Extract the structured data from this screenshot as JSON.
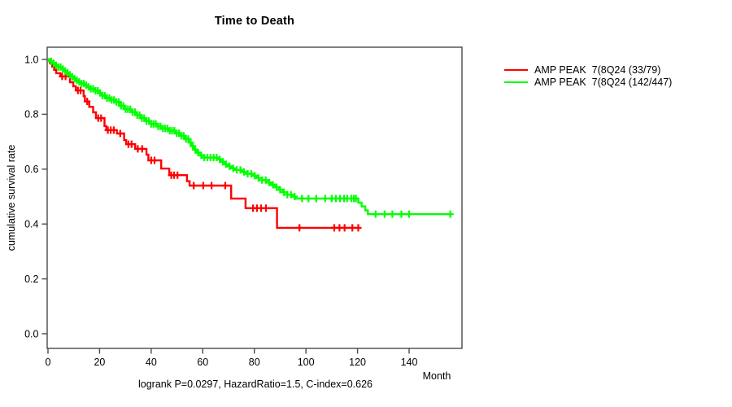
{
  "title": "Time to Death",
  "footer": "logrank P=0.0297, HazardRatio=1.5, C-index=0.626",
  "legend": [
    {
      "label": "AMP PEAK  7(8Q24 (33/79)",
      "color": "#ff0000"
    },
    {
      "label": "AMP PEAK  7(8Q24 (142/447)",
      "color": "#00ff00"
    }
  ],
  "chart_data": {
    "type": "line",
    "subtype": "kaplan-meier-step",
    "title": "Time to Death",
    "xlabel": "Month",
    "ylabel": "cumulative survival rate",
    "annotation": "logrank P=0.0297, HazardRatio=1.5, C-index=0.626",
    "xlim": [
      0,
      160
    ],
    "ylim": [
      0,
      1.0
    ],
    "grid": false,
    "legend_position": "right-outside",
    "xticks": [
      {
        "value": 0,
        "label": "0"
      },
      {
        "value": 20,
        "label": "20"
      },
      {
        "value": 40,
        "label": "40"
      },
      {
        "value": 60,
        "label": "60"
      },
      {
        "value": 80,
        "label": "80"
      },
      {
        "value": 100,
        "label": "100"
      },
      {
        "value": 120,
        "label": "120"
      },
      {
        "value": 140,
        "label": "140"
      }
    ],
    "yticks": [
      {
        "value": 0.0,
        "label": "0.0"
      },
      {
        "value": 0.2,
        "label": "0.2"
      },
      {
        "value": 0.4,
        "label": "0.4"
      },
      {
        "value": 0.6,
        "label": "0.6"
      },
      {
        "value": 0.8,
        "label": "0.8"
      },
      {
        "value": 1.0,
        "label": "1.0"
      }
    ],
    "series": [
      {
        "name": "AMP PEAK  7(8Q24 (33/79)",
        "color": "#ff0000",
        "end_month": 120.5,
        "points": [
          [
            0,
            1.0
          ],
          [
            0.8,
            0.987
          ],
          [
            1.6,
            0.974
          ],
          [
            2.4,
            0.962
          ],
          [
            3.2,
            0.95
          ],
          [
            4.8,
            0.938
          ],
          [
            8.5,
            0.917
          ],
          [
            9.8,
            0.902
          ],
          [
            10.8,
            0.887
          ],
          [
            13.8,
            0.866
          ],
          [
            14.3,
            0.847
          ],
          [
            16.0,
            0.827
          ],
          [
            17.5,
            0.807
          ],
          [
            18.6,
            0.786
          ],
          [
            21.9,
            0.757
          ],
          [
            22.6,
            0.742
          ],
          [
            26.7,
            0.73
          ],
          [
            29.5,
            0.706
          ],
          [
            30.3,
            0.691
          ],
          [
            33.8,
            0.674
          ],
          [
            38.2,
            0.653
          ],
          [
            38.9,
            0.632
          ],
          [
            43.9,
            0.602
          ],
          [
            47.0,
            0.578
          ],
          [
            53.9,
            0.556
          ],
          [
            54.9,
            0.54
          ],
          [
            71.0,
            0.493
          ],
          [
            76.6,
            0.458
          ],
          [
            88.8,
            0.386
          ]
        ],
        "censor_months": [
          5.5,
          6.8,
          11.6,
          12.6,
          15.2,
          19.5,
          20.6,
          23.2,
          24.3,
          25.5,
          28.0,
          31.2,
          32.4,
          34.8,
          36.5,
          40.0,
          41.3,
          47.8,
          48.9,
          50.2,
          56.5,
          60.2,
          63.4,
          68.7,
          79.5,
          81.0,
          82.6,
          84.5,
          97.5,
          111.0,
          113.0,
          115.0,
          118.0,
          120.3
        ]
      },
      {
        "name": "AMP PEAK  7(8Q24 (142/447)",
        "color": "#00ff00",
        "end_month": 156.5,
        "points": [
          [
            0,
            1.0
          ],
          [
            1,
            0.993
          ],
          [
            2,
            0.986
          ],
          [
            3,
            0.979
          ],
          [
            4,
            0.972
          ],
          [
            5,
            0.965
          ],
          [
            6,
            0.958
          ],
          [
            7,
            0.951
          ],
          [
            8,
            0.944
          ],
          [
            9,
            0.937
          ],
          [
            10,
            0.93
          ],
          [
            11,
            0.924
          ],
          [
            12,
            0.918
          ],
          [
            13,
            0.912
          ],
          [
            14,
            0.906
          ],
          [
            15,
            0.9
          ],
          [
            16.5,
            0.893
          ],
          [
            18,
            0.886
          ],
          [
            19.5,
            0.878
          ],
          [
            21,
            0.868
          ],
          [
            22.5,
            0.859
          ],
          [
            24,
            0.852
          ],
          [
            26,
            0.845
          ],
          [
            28,
            0.831
          ],
          [
            30,
            0.818
          ],
          [
            32,
            0.808
          ],
          [
            34,
            0.797
          ],
          [
            36,
            0.786
          ],
          [
            38,
            0.775
          ],
          [
            40,
            0.765
          ],
          [
            42,
            0.756
          ],
          [
            44.5,
            0.748
          ],
          [
            47,
            0.74
          ],
          [
            49.5,
            0.731
          ],
          [
            51.5,
            0.722
          ],
          [
            53,
            0.71
          ],
          [
            54.5,
            0.697
          ],
          [
            55.5,
            0.684
          ],
          [
            56.5,
            0.671
          ],
          [
            57.8,
            0.66
          ],
          [
            59.2,
            0.65
          ],
          [
            60.5,
            0.642
          ],
          [
            66,
            0.636
          ],
          [
            67,
            0.627
          ],
          [
            68.2,
            0.618
          ],
          [
            69.6,
            0.61
          ],
          [
            71,
            0.603
          ],
          [
            73,
            0.597
          ],
          [
            75,
            0.59
          ],
          [
            77,
            0.583
          ],
          [
            79,
            0.576
          ],
          [
            81,
            0.568
          ],
          [
            83,
            0.56
          ],
          [
            84.8,
            0.551
          ],
          [
            86.4,
            0.543
          ],
          [
            88,
            0.534
          ],
          [
            89.6,
            0.525
          ],
          [
            91.2,
            0.516
          ],
          [
            92.8,
            0.507
          ],
          [
            94.4,
            0.5
          ],
          [
            95.8,
            0.493
          ],
          [
            120.3,
            0.478
          ],
          [
            121.6,
            0.464
          ],
          [
            123.0,
            0.45
          ],
          [
            124.0,
            0.436
          ]
        ],
        "censor_months": [
          1.2,
          2.2,
          3.1,
          4.0,
          4.9,
          5.8,
          6.7,
          7.6,
          8.5,
          9.4,
          10.3,
          11.2,
          12.1,
          13.0,
          13.9,
          14.8,
          15.7,
          16.6,
          17.5,
          18.4,
          19.3,
          20.2,
          21.1,
          22.0,
          22.9,
          23.8,
          24.7,
          25.6,
          26.5,
          27.4,
          28.3,
          29.2,
          30.1,
          31.0,
          31.9,
          32.8,
          33.7,
          34.6,
          35.5,
          36.4,
          37.3,
          38.2,
          39.1,
          40.0,
          40.9,
          41.8,
          42.7,
          43.6,
          44.5,
          45.4,
          46.3,
          47.2,
          48.1,
          49.0,
          49.9,
          50.8,
          51.7,
          52.6,
          53.5,
          54.4,
          55.3,
          56.2,
          57.1,
          58.2,
          59.4,
          60.6,
          61.8,
          63.0,
          64.2,
          65.4,
          66.6,
          67.8,
          69.0,
          70.4,
          71.8,
          73.2,
          74.6,
          76.0,
          77.4,
          78.8,
          80.2,
          81.6,
          83.0,
          84.4,
          85.8,
          87.2,
          88.6,
          90.0,
          91.4,
          92.8,
          94.2,
          95.6,
          98.5,
          101.0,
          104.0,
          107.5,
          110.0,
          111.6,
          113.2,
          114.8,
          116.0,
          117.6,
          118.6,
          119.4,
          127.0,
          130.5,
          133.5,
          137.0,
          140.0,
          156.0
        ]
      }
    ]
  }
}
